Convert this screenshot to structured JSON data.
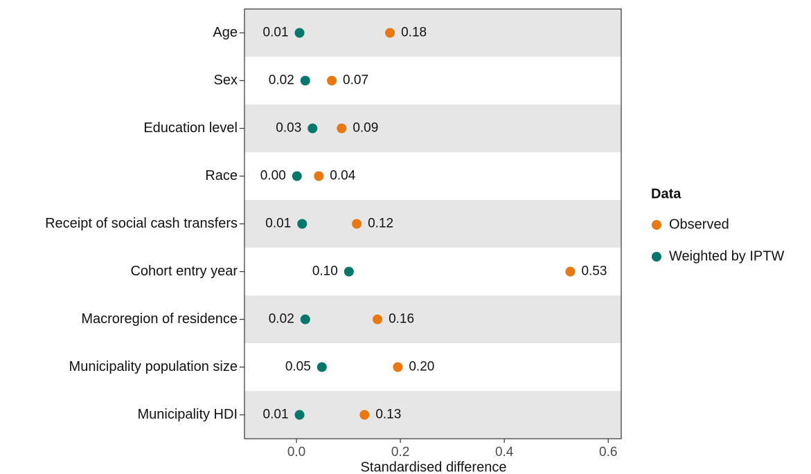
{
  "chart_data": {
    "type": "dot",
    "x_label": "Standardised difference",
    "legend_title": "Data",
    "legend_position": "right",
    "stripes": true,
    "categories": [
      "Age",
      "Sex",
      "Education level",
      "Race",
      "Receipt of social cash transfers",
      "Cohort entry year",
      "Macroregion of residence",
      "Municipality population size",
      "Municipality HDI"
    ],
    "series": [
      {
        "name": "Observed",
        "color": "#e8780f",
        "values": [
          0.18,
          0.068,
          0.087,
          0.043,
          0.116,
          0.527,
          0.156,
          0.195,
          0.131
        ],
        "value_labels": [
          "0.18",
          "0.07",
          "0.09",
          "0.04",
          "0.12",
          "0.53",
          "0.16",
          "0.20",
          "0.13"
        ]
      },
      {
        "name": "Weighted by IPTW",
        "color": "#06786b",
        "values": [
          0.006,
          0.017,
          0.031,
          0.001,
          0.011,
          0.101,
          0.017,
          0.049,
          0.006
        ],
        "value_labels": [
          "0.01",
          "0.02",
          "0.03",
          "0.00",
          "0.01",
          "0.10",
          "0.02",
          "0.05",
          "0.01"
        ]
      }
    ],
    "xlim": [
      -0.1,
      0.625
    ],
    "xticks": [
      {
        "value": 0,
        "label": "0.0"
      },
      0.2,
      0.4,
      0.6
    ]
  }
}
